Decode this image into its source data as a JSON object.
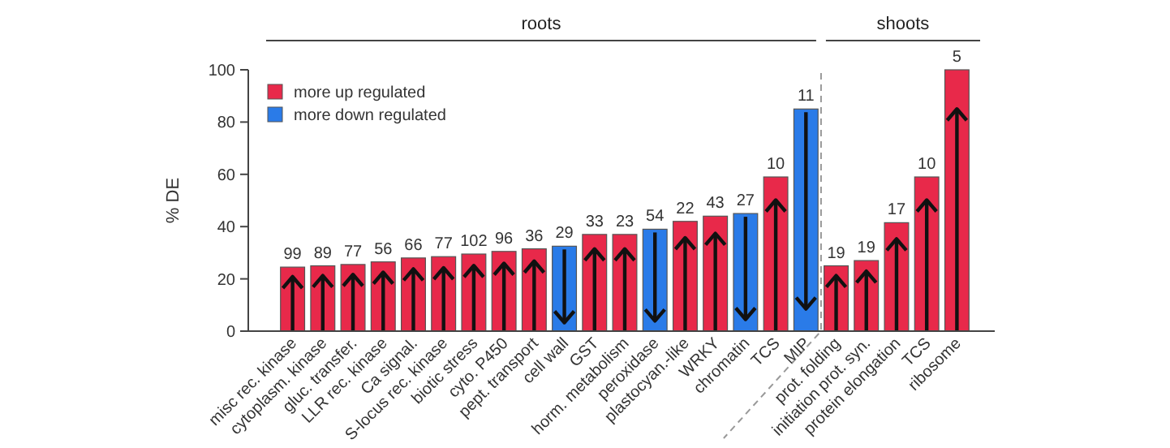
{
  "chart_data": {
    "type": "bar",
    "ylabel": "% DE",
    "annotations": [
      "roots",
      "shoots",
      {
        "text": "99",
        "x": "misc rec. kinase",
        "y": 24.5
      },
      {
        "text": "89",
        "x": "cytoplasm. kinase",
        "y": 25
      },
      {
        "text": "77",
        "x": "gluc. transfer.",
        "y": 25.5
      },
      {
        "text": "56",
        "x": "LLR rec. kinase",
        "y": 26.5
      },
      {
        "text": "66",
        "x": "Ca signal.",
        "y": 28
      },
      {
        "text": "77",
        "x": "S-locus rec. kinase",
        "y": 28.5
      },
      {
        "text": "102",
        "x": "biotic stress",
        "y": 29.5
      },
      {
        "text": "96",
        "x": "cyto. P450",
        "y": 30.5
      },
      {
        "text": "36",
        "x": "pept. transport",
        "y": 31.5
      },
      {
        "text": "29",
        "x": "cell wall",
        "y": 32.5
      },
      {
        "text": "33",
        "x": "GST",
        "y": 37
      },
      {
        "text": "23",
        "x": "horm. metabolism",
        "y": 37
      },
      {
        "text": "54",
        "x": "peroxidase",
        "y": 39
      },
      {
        "text": "22",
        "x": "plastocyan.-like",
        "y": 42
      },
      {
        "text": "43",
        "x": "WRKY",
        "y": 44
      },
      {
        "text": "27",
        "x": "chromatin",
        "y": 45
      },
      {
        "text": "10",
        "x": "TCS",
        "y": 59
      },
      {
        "text": "11",
        "x": "MIP",
        "y": 85
      },
      {
        "text": "19",
        "x": "prot. folding",
        "y": 25
      },
      {
        "text": "19",
        "x": "initiation prot. syn.",
        "y": 27
      },
      {
        "text": "17",
        "x": "protein elongation",
        "y": 41.5
      },
      {
        "text": "10",
        "y": 59
      },
      {
        "text": "5",
        "x": "ribosome",
        "y": 100
      }
    ],
    "categories": [
      "misc rec. kinase",
      "cytoplasm. kinase",
      "gluc. transfer.",
      "LLR rec. kinase",
      "Ca signal.",
      "S-locus rec. kinase",
      "biotic stress",
      "cyto. P450",
      "pept. transport",
      "cell wall",
      "GST",
      "horm. metabolism",
      "peroxidase",
      "plastocyan.-like",
      "WRKY",
      "chromatin",
      "TCS",
      "MIP",
      "prot. folding",
      "initiation prot. syn.",
      "protein elongation",
      "TCS",
      "ribosome"
    ],
    "series": [
      {
        "name": "more up regulated",
        "color": "#e8294a",
        "values": [
          24.5,
          25,
          25.5,
          26.5,
          28,
          28.5,
          29.5,
          30.5,
          31.5,
          null,
          37,
          37,
          null,
          42,
          44,
          null,
          59,
          null,
          25,
          27,
          41.5,
          59,
          100
        ]
      },
      {
        "name": "more down regulated",
        "color": "#2a7be8",
        "values": [
          null,
          null,
          null,
          null,
          null,
          null,
          null,
          null,
          null,
          32.5,
          null,
          null,
          39,
          null,
          null,
          45,
          null,
          85,
          null,
          null,
          null,
          null,
          null
        ]
      }
    ],
    "ylim": [
      0,
      100
    ],
    "yticks": [
      0,
      20,
      40,
      60,
      80,
      100
    ],
    "legend": "top left"
  }
}
